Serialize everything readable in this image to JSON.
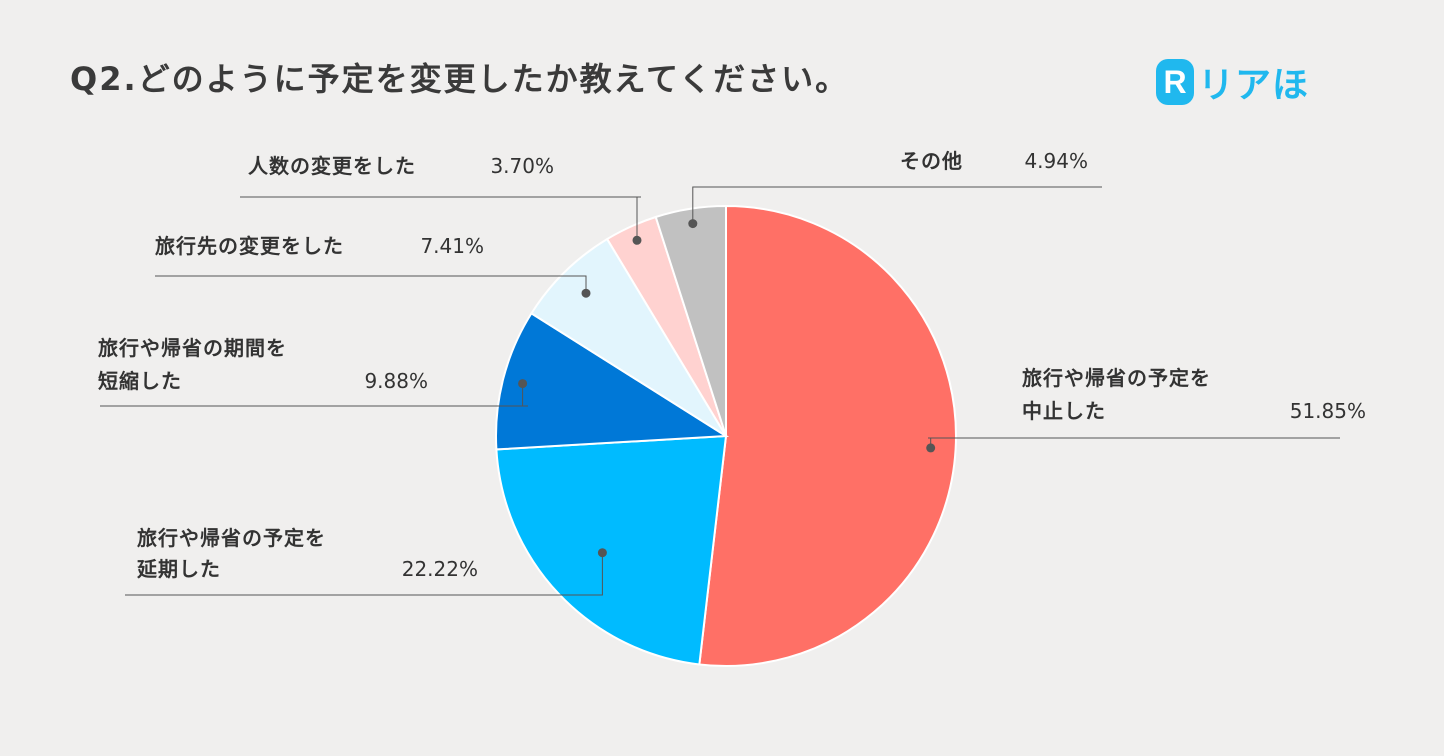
{
  "title": "Q2.どのように予定を変更したか教えてください。",
  "logo": {
    "mark": "R",
    "text": "リアほ",
    "color": "#20b8ee"
  },
  "chart_data": {
    "type": "pie",
    "title": "Q2.どのように予定を変更したか教えてください。",
    "start": "12 o'clock",
    "direction": "clockwise",
    "slices": [
      {
        "label_lines": [
          "旅行や帰省の予定を",
          "中止した"
        ],
        "value": 51.85,
        "value_label": "51.85%",
        "color": "#ff7066"
      },
      {
        "label_lines": [
          "旅行や帰省の予定を",
          "延期した"
        ],
        "value": 22.22,
        "value_label": "22.22%",
        "color": "#00bbff"
      },
      {
        "label_lines": [
          "旅行や帰省の期間を",
          "短縮した"
        ],
        "value": 9.88,
        "value_label": "9.88%",
        "color": "#0078d7"
      },
      {
        "label_lines": [
          "旅行先の変更をした"
        ],
        "value": 7.41,
        "value_label": "7.41%",
        "color": "#e2f5fd"
      },
      {
        "label_lines": [
          "人数の変更をした"
        ],
        "value": 3.7,
        "value_label": "3.70%",
        "color": "#ffd2d0"
      },
      {
        "label_lines": [
          "その他"
        ],
        "value": 4.94,
        "value_label": "4.94%",
        "color": "#c1c1c1"
      }
    ]
  }
}
